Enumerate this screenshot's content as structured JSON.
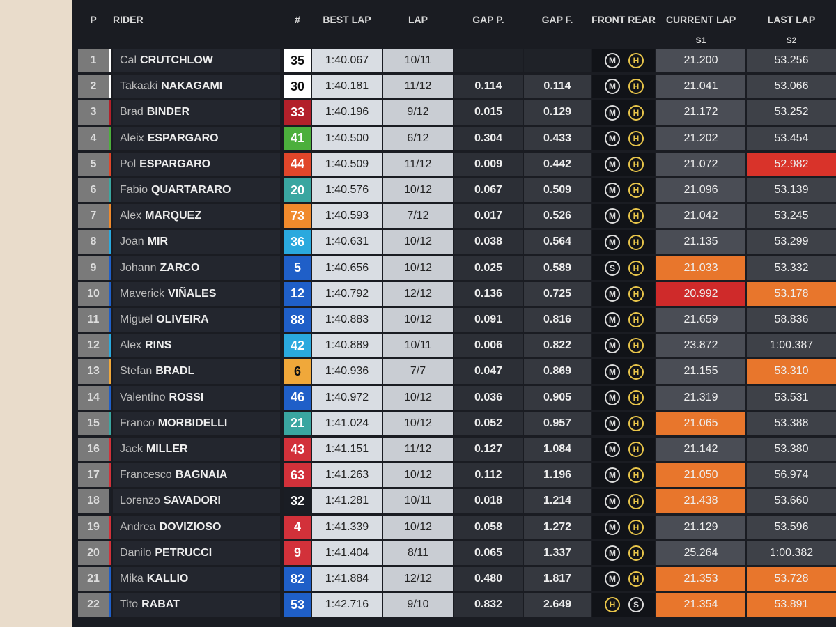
{
  "headers": {
    "pos": "P",
    "rider": "RIDER",
    "num": "#",
    "best": "BEST LAP",
    "lap": "LAP",
    "gap_p": "GAP P.",
    "gap_f": "GAP F.",
    "tyres": "FRONT REAR",
    "current": "CURRENT LAP",
    "last": "LAST LAP",
    "s1": "S1",
    "s2": "S2"
  },
  "rows": [
    {
      "pos": "1",
      "first": "Cal",
      "last": "CRUTCHLOW",
      "num": "35",
      "color": "#ffffff",
      "best": "1:40.067",
      "lap": "10/11",
      "gap_p": null,
      "gap_f": null,
      "front": "M",
      "rear": "H",
      "s1": "21.200",
      "s2": "53.256",
      "s1_color": null,
      "s2_color": null
    },
    {
      "pos": "2",
      "first": "Takaaki",
      "last": "NAKAGAMI",
      "num": "30",
      "color": "#ffffff",
      "best": "1:40.181",
      "lap": "11/12",
      "gap_p": "0.114",
      "gap_f": "0.114",
      "front": "M",
      "rear": "H",
      "s1": "21.041",
      "s2": "53.066",
      "s1_color": null,
      "s2_color": null
    },
    {
      "pos": "3",
      "first": "Brad",
      "last": "BINDER",
      "num": "33",
      "color": "#b3202a",
      "best": "1:40.196",
      "lap": "9/12",
      "gap_p": "0.015",
      "gap_f": "0.129",
      "front": "M",
      "rear": "H",
      "s1": "21.172",
      "s2": "53.252",
      "s1_color": null,
      "s2_color": null
    },
    {
      "pos": "4",
      "first": "Aleix",
      "last": "ESPARGARO",
      "num": "41",
      "color": "#4caf3c",
      "best": "1:40.500",
      "lap": "6/12",
      "gap_p": "0.304",
      "gap_f": "0.433",
      "front": "M",
      "rear": "H",
      "s1": "21.202",
      "s2": "53.454",
      "s1_color": null,
      "s2_color": null
    },
    {
      "pos": "5",
      "first": "Pol",
      "last": "ESPARGARO",
      "num": "44",
      "color": "#e0462a",
      "best": "1:40.509",
      "lap": "11/12",
      "gap_p": "0.009",
      "gap_f": "0.442",
      "front": "M",
      "rear": "H",
      "s1": "21.072",
      "s2": "52.982",
      "s1_color": null,
      "s2_color": "#d9332a"
    },
    {
      "pos": "6",
      "first": "Fabio",
      "last": "QUARTARARO",
      "num": "20",
      "color": "#3aa6a0",
      "best": "1:40.576",
      "lap": "10/12",
      "gap_p": "0.067",
      "gap_f": "0.509",
      "front": "M",
      "rear": "H",
      "s1": "21.096",
      "s2": "53.139",
      "s1_color": null,
      "s2_color": null
    },
    {
      "pos": "7",
      "first": "Alex",
      "last": "MARQUEZ",
      "num": "73",
      "color": "#f08a2c",
      "best": "1:40.593",
      "lap": "7/12",
      "gap_p": "0.017",
      "gap_f": "0.526",
      "front": "M",
      "rear": "H",
      "s1": "21.042",
      "s2": "53.245",
      "s1_color": null,
      "s2_color": null
    },
    {
      "pos": "8",
      "first": "Joan",
      "last": "MIR",
      "num": "36",
      "color": "#2aa9de",
      "best": "1:40.631",
      "lap": "10/12",
      "gap_p": "0.038",
      "gap_f": "0.564",
      "front": "M",
      "rear": "H",
      "s1": "21.135",
      "s2": "53.299",
      "s1_color": null,
      "s2_color": null
    },
    {
      "pos": "9",
      "first": "Johann",
      "last": "ZARCO",
      "num": "5",
      "color": "#1f5fc8",
      "best": "1:40.656",
      "lap": "10/12",
      "gap_p": "0.025",
      "gap_f": "0.589",
      "front": "S",
      "rear": "H",
      "s1": "21.033",
      "s2": "53.332",
      "s1_color": "#e8762c",
      "s2_color": null
    },
    {
      "pos": "10",
      "first": "Maverick",
      "last": "VIÑALES",
      "num": "12",
      "color": "#1f5fc8",
      "best": "1:40.792",
      "lap": "12/12",
      "gap_p": "0.136",
      "gap_f": "0.725",
      "front": "M",
      "rear": "H",
      "s1": "20.992",
      "s2": "53.178",
      "s1_color": "#cf2a2a",
      "s2_color": "#e8762c"
    },
    {
      "pos": "11",
      "first": "Miguel",
      "last": "OLIVEIRA",
      "num": "88",
      "color": "#1f5fc8",
      "best": "1:40.883",
      "lap": "10/12",
      "gap_p": "0.091",
      "gap_f": "0.816",
      "front": "M",
      "rear": "H",
      "s1": "21.659",
      "s2": "58.836",
      "s1_color": null,
      "s2_color": null
    },
    {
      "pos": "12",
      "first": "Alex",
      "last": "RINS",
      "num": "42",
      "color": "#2aa9de",
      "best": "1:40.889",
      "lap": "10/11",
      "gap_p": "0.006",
      "gap_f": "0.822",
      "front": "M",
      "rear": "H",
      "s1": "23.872",
      "s2": "1:00.387",
      "s1_color": null,
      "s2_color": null
    },
    {
      "pos": "13",
      "first": "Stefan",
      "last": "BRADL",
      "num": "6",
      "color": "#f0a83a",
      "best": "1:40.936",
      "lap": "7/7",
      "gap_p": "0.047",
      "gap_f": "0.869",
      "front": "M",
      "rear": "H",
      "s1": "21.155",
      "s2": "53.310",
      "s1_color": null,
      "s2_color": "#e8762c"
    },
    {
      "pos": "14",
      "first": "Valentino",
      "last": "ROSSI",
      "num": "46",
      "color": "#1f5fc8",
      "best": "1:40.972",
      "lap": "10/12",
      "gap_p": "0.036",
      "gap_f": "0.905",
      "front": "M",
      "rear": "H",
      "s1": "21.319",
      "s2": "53.531",
      "s1_color": null,
      "s2_color": null
    },
    {
      "pos": "15",
      "first": "Franco",
      "last": "MORBIDELLI",
      "num": "21",
      "color": "#3aa6a0",
      "best": "1:41.024",
      "lap": "10/12",
      "gap_p": "0.052",
      "gap_f": "0.957",
      "front": "M",
      "rear": "H",
      "s1": "21.065",
      "s2": "53.388",
      "s1_color": "#e8762c",
      "s2_color": null
    },
    {
      "pos": "16",
      "first": "Jack",
      "last": "MILLER",
      "num": "43",
      "color": "#d2313a",
      "best": "1:41.151",
      "lap": "11/12",
      "gap_p": "0.127",
      "gap_f": "1.084",
      "front": "M",
      "rear": "H",
      "s1": "21.142",
      "s2": "53.380",
      "s1_color": null,
      "s2_color": null
    },
    {
      "pos": "17",
      "first": "Francesco",
      "last": "BAGNAIA",
      "num": "63",
      "color": "#d2313a",
      "best": "1:41.263",
      "lap": "10/12",
      "gap_p": "0.112",
      "gap_f": "1.196",
      "front": "M",
      "rear": "H",
      "s1": "21.050",
      "s2": "56.974",
      "s1_color": "#e8762c",
      "s2_color": null
    },
    {
      "pos": "18",
      "first": "Lorenzo",
      "last": "SAVADORI",
      "num": "32",
      "color": "#1a1d24",
      "best": "1:41.281",
      "lap": "10/11",
      "gap_p": "0.018",
      "gap_f": "1.214",
      "front": "M",
      "rear": "H",
      "s1": "21.438",
      "s2": "53.660",
      "s1_color": "#e8762c",
      "s2_color": null
    },
    {
      "pos": "19",
      "first": "Andrea",
      "last": "DOVIZIOSO",
      "num": "4",
      "color": "#d2313a",
      "best": "1:41.339",
      "lap": "10/12",
      "gap_p": "0.058",
      "gap_f": "1.272",
      "front": "M",
      "rear": "H",
      "s1": "21.129",
      "s2": "53.596",
      "s1_color": null,
      "s2_color": null
    },
    {
      "pos": "20",
      "first": "Danilo",
      "last": "PETRUCCI",
      "num": "9",
      "color": "#d2313a",
      "best": "1:41.404",
      "lap": "8/11",
      "gap_p": "0.065",
      "gap_f": "1.337",
      "front": "M",
      "rear": "H",
      "s1": "25.264",
      "s2": "1:00.382",
      "s1_color": null,
      "s2_color": null
    },
    {
      "pos": "21",
      "first": "Mika",
      "last": "KALLIO",
      "num": "82",
      "color": "#1f5fc8",
      "best": "1:41.884",
      "lap": "12/12",
      "gap_p": "0.480",
      "gap_f": "1.817",
      "front": "M",
      "rear": "H",
      "s1": "21.353",
      "s2": "53.728",
      "s1_color": "#e8762c",
      "s2_color": "#e8762c"
    },
    {
      "pos": "22",
      "first": "Tito",
      "last": "RABAT",
      "num": "53",
      "color": "#1f5fc8",
      "best": "1:42.716",
      "lap": "9/10",
      "gap_p": "0.832",
      "gap_f": "2.649",
      "front": "H",
      "rear": "S",
      "s1": "21.354",
      "s2": "53.891",
      "s1_color": "#e8762c",
      "s2_color": "#e8762c"
    }
  ]
}
